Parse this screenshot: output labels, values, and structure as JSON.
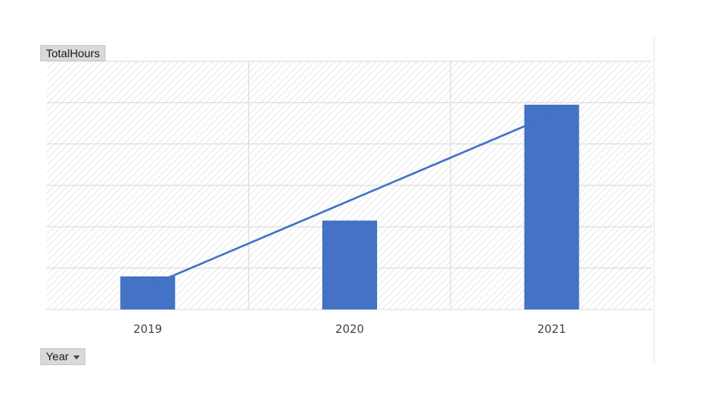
{
  "value_field_button": {
    "label": "TotalHours"
  },
  "axis_field_button": {
    "label": "Year",
    "icon": "chevron-down-icon"
  },
  "colors": {
    "bar": "#4472c4",
    "trendline": "#4472c4",
    "gridline": "#d9d9d9",
    "plot_hatch": "#e3e3e3"
  },
  "chart_data": {
    "type": "bar",
    "categories": [
      "2019",
      "2020",
      "2021"
    ],
    "values": [
      0.8,
      2.15,
      4.95
    ],
    "ylim": [
      0,
      6
    ],
    "y_tick_labels_visible": false,
    "grid": true,
    "plot_background": "diagonal-hatch",
    "trendline": {
      "type": "linear"
    },
    "title": "",
    "xlabel": "",
    "ylabel": ""
  }
}
